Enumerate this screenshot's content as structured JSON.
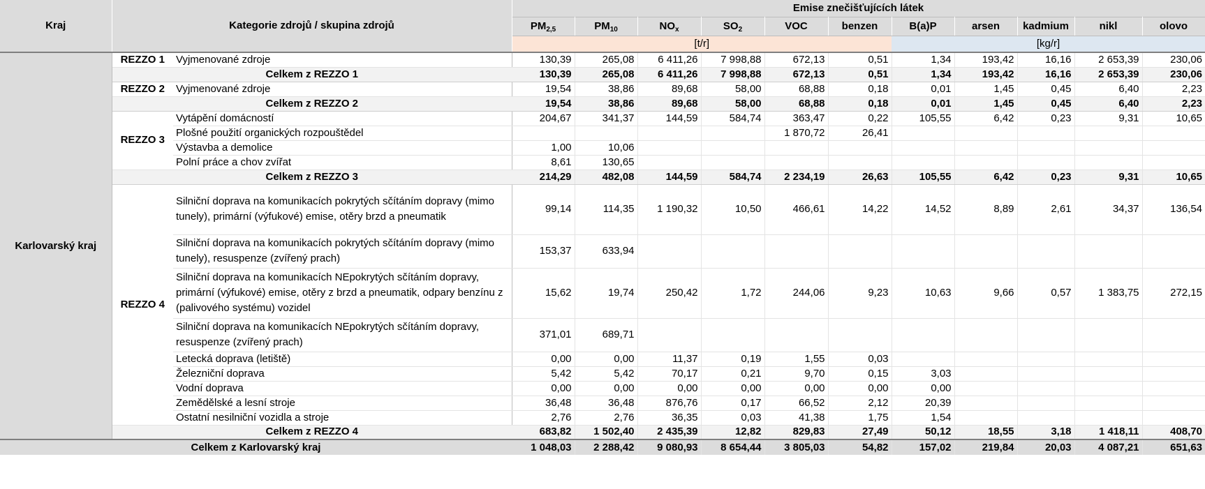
{
  "header": {
    "kraj": "Kraj",
    "kategorie": "Kategorie zdrojů / skupina zdrojů",
    "emise": "Emise znečišťujících látek",
    "pollutants": [
      {
        "label": "PM",
        "sub": "2,5"
      },
      {
        "label": "PM",
        "sub": "10"
      },
      {
        "label": "NO",
        "sub": "x"
      },
      {
        "label": "SO",
        "sub": "2"
      },
      {
        "label": "VOC",
        "sub": ""
      },
      {
        "label": "benzen",
        "sub": ""
      },
      {
        "label": "B(a)P",
        "sub": ""
      },
      {
        "label": "arsen",
        "sub": ""
      },
      {
        "label": "kadmium",
        "sub": ""
      },
      {
        "label": "nikl",
        "sub": ""
      },
      {
        "label": "olovo",
        "sub": ""
      }
    ],
    "unit_t": "[t/r]",
    "unit_kg": "[kg/r]"
  },
  "region": "Karlovarský kraj",
  "groups": [
    {
      "name": "REZZO 1",
      "rows": [
        {
          "label": "Vyjmenované zdroje",
          "values": [
            "130,39",
            "265,08",
            "6 411,26",
            "7 998,88",
            "672,13",
            "0,51",
            "1,34",
            "193,42",
            "16,16",
            "2 653,39",
            "230,06"
          ]
        }
      ],
      "total_label": "Celkem z REZZO 1",
      "total": [
        "130,39",
        "265,08",
        "6 411,26",
        "7 998,88",
        "672,13",
        "0,51",
        "1,34",
        "193,42",
        "16,16",
        "2 653,39",
        "230,06"
      ]
    },
    {
      "name": "REZZO 2",
      "rows": [
        {
          "label": "Vyjmenované zdroje",
          "values": [
            "19,54",
            "38,86",
            "89,68",
            "58,00",
            "68,88",
            "0,18",
            "0,01",
            "1,45",
            "0,45",
            "6,40",
            "2,23"
          ]
        }
      ],
      "total_label": "Celkem z REZZO 2",
      "total": [
        "19,54",
        "38,86",
        "89,68",
        "58,00",
        "68,88",
        "0,18",
        "0,01",
        "1,45",
        "0,45",
        "6,40",
        "2,23"
      ]
    },
    {
      "name": "REZZO 3",
      "rows": [
        {
          "label": "Vytápění domácností",
          "values": [
            "204,67",
            "341,37",
            "144,59",
            "584,74",
            "363,47",
            "0,22",
            "105,55",
            "6,42",
            "0,23",
            "9,31",
            "10,65"
          ]
        },
        {
          "label": "Plošné použití organických rozpouštědel",
          "values": [
            "",
            "",
            "",
            "",
            "1 870,72",
            "26,41",
            "",
            "",
            "",
            "",
            ""
          ]
        },
        {
          "label": "Výstavba a demolice",
          "values": [
            "1,00",
            "10,06",
            "",
            "",
            "",
            "",
            "",
            "",
            "",
            "",
            ""
          ]
        },
        {
          "label": "Polní práce a chov zvířat",
          "values": [
            "8,61",
            "130,65",
            "",
            "",
            "",
            "",
            "",
            "",
            "",
            "",
            ""
          ]
        }
      ],
      "total_label": "Celkem z REZZO 3",
      "total": [
        "214,29",
        "482,08",
        "144,59",
        "584,74",
        "2 234,19",
        "26,63",
        "105,55",
        "6,42",
        "0,23",
        "9,31",
        "10,65"
      ]
    },
    {
      "name": "REZZO 4",
      "rows": [
        {
          "label": "Silniční doprava na komunikacích pokrytých sčítáním dopravy (mimo tunely), primární (výfukové) emise, otěry brzd a pneumatik",
          "values": [
            "99,14",
            "114,35",
            "1 190,32",
            "10,50",
            "466,61",
            "14,22",
            "14,52",
            "8,89",
            "2,61",
            "34,37",
            "136,54"
          ],
          "tall": 72
        },
        {
          "label": "Silniční doprava na komunikacích pokrytých sčítáním dopravy (mimo tunely), resuspenze (zvířený prach)",
          "values": [
            "153,37",
            "633,94",
            "",
            "",
            "",
            "",
            "",
            "",
            "",
            "",
            ""
          ],
          "tall": 48
        },
        {
          "label": "Silniční doprava na komunikacích NEpokrytých sčítáním dopravy, primární (výfukové) emise, otěry z brzd a pneumatik, odpary benzínu z (palivového systému) vozidel",
          "values": [
            "15,62",
            "19,74",
            "250,42",
            "1,72",
            "244,06",
            "9,23",
            "10,63",
            "9,66",
            "0,57",
            "1 383,75",
            "272,15"
          ],
          "tall": 72
        },
        {
          "label": "Silniční doprava na komunikacích NEpokrytých sčítáním dopravy, resuspenze (zvířený prach)",
          "values": [
            "371,01",
            "689,71",
            "",
            "",
            "",
            "",
            "",
            "",
            "",
            "",
            ""
          ],
          "tall": 48
        },
        {
          "label": "Letecká doprava (letiště)",
          "values": [
            "0,00",
            "0,00",
            "11,37",
            "0,19",
            "1,55",
            "0,03",
            "",
            "",
            "",
            "",
            ""
          ]
        },
        {
          "label": "Železniční doprava",
          "values": [
            "5,42",
            "5,42",
            "70,17",
            "0,21",
            "9,70",
            "0,15",
            "3,03",
            "",
            "",
            "",
            ""
          ]
        },
        {
          "label": "Vodní doprava",
          "values": [
            "0,00",
            "0,00",
            "0,00",
            "0,00",
            "0,00",
            "0,00",
            "0,00",
            "",
            "",
            "",
            ""
          ]
        },
        {
          "label": "Zemědělské a lesní stroje",
          "values": [
            "36,48",
            "36,48",
            "876,76",
            "0,17",
            "66,52",
            "2,12",
            "20,39",
            "",
            "",
            "",
            ""
          ]
        },
        {
          "label": "Ostatní nesilniční vozidla a stroje",
          "values": [
            "2,76",
            "2,76",
            "36,35",
            "0,03",
            "41,38",
            "1,75",
            "1,54",
            "",
            "",
            "",
            ""
          ]
        }
      ],
      "total_label": "Celkem z REZZO 4",
      "total": [
        "683,82",
        "1 502,40",
        "2 435,39",
        "12,82",
        "829,83",
        "27,49",
        "50,12",
        "18,55",
        "3,18",
        "1 418,11",
        "408,70"
      ]
    }
  ],
  "grand_total_label": "Celkem z Karlovarský kraj",
  "grand_total": [
    "1 048,03",
    "2 288,42",
    "9 080,93",
    "8 654,44",
    "3 805,03",
    "54,82",
    "157,02",
    "219,84",
    "20,03",
    "4 087,21",
    "651,63"
  ]
}
